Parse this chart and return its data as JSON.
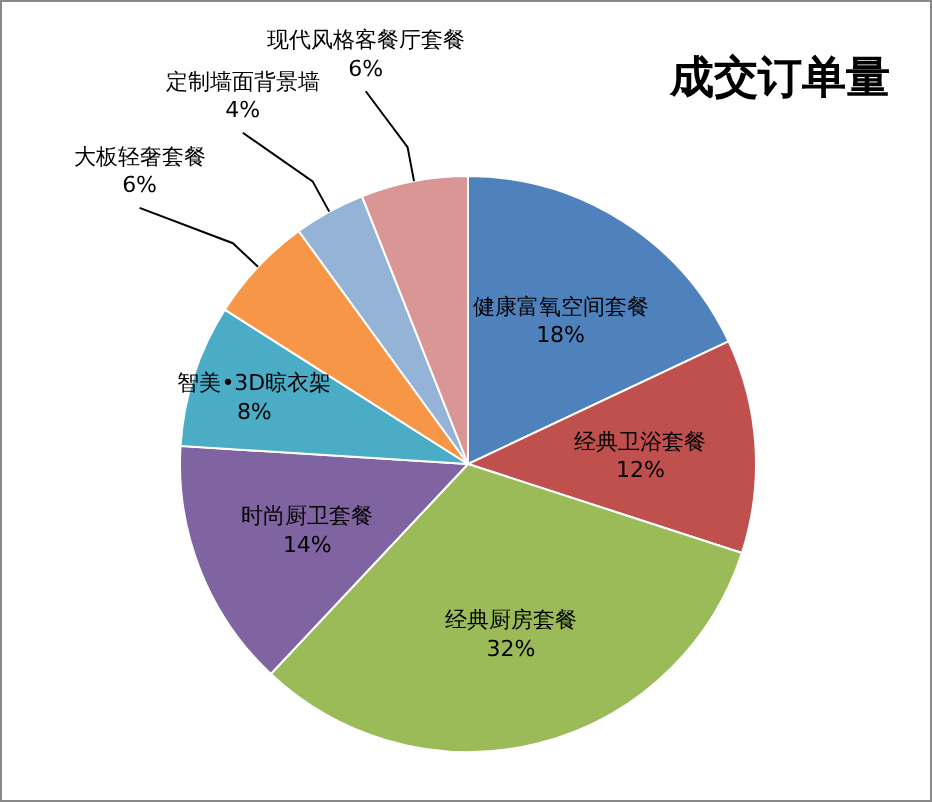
{
  "chart_data": {
    "type": "pie",
    "title": "成交订单量",
    "categories": [
      "健康富氧空间套餐",
      "经典卫浴套餐",
      "经典厨房套餐",
      "时尚厨卫套餐",
      "智美•3D晾衣架",
      "大板轻奢套餐",
      "定制墙面背景墙",
      "现代风格客餐厅套餐"
    ],
    "values": [
      18,
      12,
      32,
      14,
      8,
      6,
      4,
      6
    ],
    "colors": [
      "#4f81bd",
      "#c0504d",
      "#9bbb59",
      "#8064a2",
      "#4bacc6",
      "#f79646",
      "#95b3d7",
      "#d99694"
    ],
    "value_labels": [
      "18%",
      "12%",
      "32%",
      "14%",
      "8%",
      "6%",
      "4%",
      "6%"
    ]
  }
}
